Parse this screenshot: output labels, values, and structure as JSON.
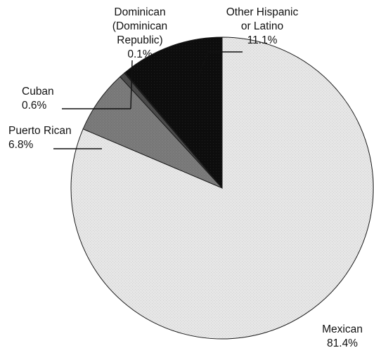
{
  "chart_data": {
    "type": "pie",
    "slices": [
      {
        "label": "Mexican",
        "value": 81.4,
        "value_label": "81.4%",
        "label_lines": [
          "Mexican"
        ],
        "color": "#e6e6e6"
      },
      {
        "label": "Puerto Rican",
        "value": 6.8,
        "value_label": "6.8%",
        "label_lines": [
          "Puerto Rican"
        ],
        "color": "#7a7a7a"
      },
      {
        "label": "Cuban",
        "value": 0.6,
        "value_label": "0.6%",
        "label_lines": [
          "Cuban"
        ],
        "color": "#4a4a4a"
      },
      {
        "label": "Dominican (Dominican Republic)",
        "value": 0.1,
        "value_label": "0.1%",
        "label_lines": [
          "Dominican",
          "(Dominican",
          "Republic)"
        ],
        "color": "#2e2e2e"
      },
      {
        "label": "Other Hispanic or Latino",
        "value": 11.1,
        "value_label": "11.1%",
        "label_lines": [
          "Other Hispanic",
          "or Latino"
        ],
        "color": "#0d0d0d"
      }
    ],
    "start": "12 o'clock",
    "direction": "clockwise",
    "legend": "none"
  }
}
